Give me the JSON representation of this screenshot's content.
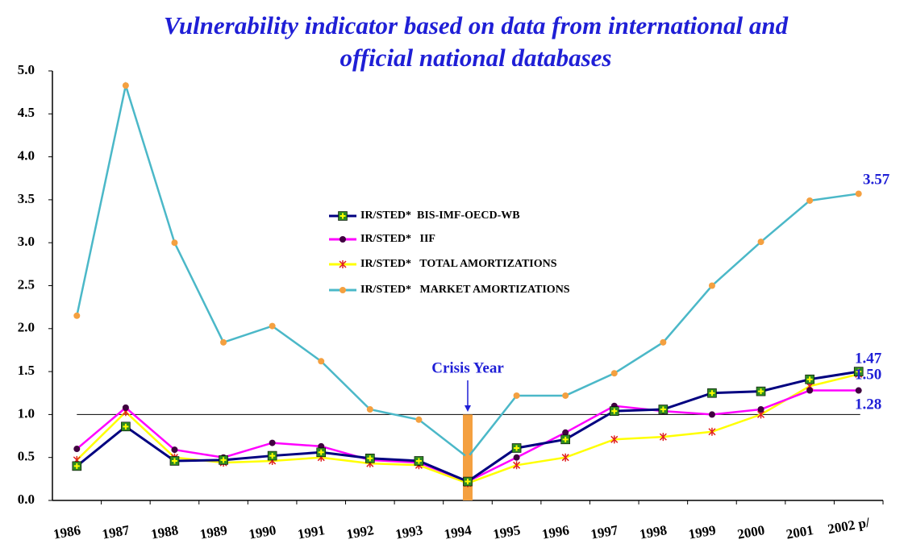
{
  "chart_data": {
    "type": "line",
    "title": [
      "Vulnerability indicator based on data from international and",
      "official national databases"
    ],
    "categories": [
      "1986",
      "1987",
      "1988",
      "1989",
      "1990",
      "1991",
      "1992",
      "1993",
      "1994",
      "1995",
      "1996",
      "1997",
      "1998",
      "1999",
      "2000",
      "2001",
      "2002 p/"
    ],
    "series": [
      {
        "name": "IR/STED*  BIS-IMF-OECD-WB",
        "color": "#000080",
        "marker": "square",
        "marker_color": "#2e8b22",
        "values": [
          0.4,
          0.86,
          0.46,
          0.47,
          0.52,
          0.56,
          0.49,
          0.46,
          0.22,
          0.61,
          0.71,
          1.04,
          1.06,
          1.25,
          1.27,
          1.41,
          1.5
        ]
      },
      {
        "name": "IR/STED*   IIF",
        "color": "#ff00ff",
        "marker": "circle",
        "marker_color": "#400040",
        "values": [
          0.6,
          1.08,
          0.59,
          0.5,
          0.67,
          0.63,
          0.47,
          0.44,
          0.22,
          0.5,
          0.79,
          1.1,
          1.04,
          1.0,
          1.06,
          1.28,
          1.28
        ]
      },
      {
        "name": "IR/STED*   TOTAL AMORTIZATIONS",
        "color": "#ffff00",
        "marker": "cross",
        "marker_color": "#e02020",
        "values": [
          0.47,
          1.03,
          0.5,
          0.44,
          0.46,
          0.5,
          0.43,
          0.41,
          0.2,
          0.41,
          0.5,
          0.71,
          0.74,
          0.8,
          1.0,
          1.33,
          1.47
        ]
      },
      {
        "name": "IR/STED*   MARKET AMORTIZATIONS",
        "color": "#4bb8c8",
        "marker": "circle",
        "marker_color": "#f4a040",
        "values": [
          2.15,
          4.83,
          3.0,
          1.84,
          2.03,
          1.62,
          1.06,
          0.94,
          0.5,
          1.22,
          1.22,
          1.48,
          1.84,
          2.5,
          3.01,
          3.49,
          3.57
        ]
      }
    ],
    "ylim": [
      0,
      5
    ],
    "yticks": [
      {
        "value": 0,
        "label": "0.0"
      },
      0.5,
      {
        "value": 1,
        "label": "1.0"
      },
      1.5,
      {
        "value": 2,
        "label": "2.0"
      },
      2.5,
      {
        "value": 3,
        "label": "3.0"
      },
      3.5,
      {
        "value": 4,
        "label": "4.0"
      },
      4.5,
      {
        "value": 5,
        "label": "5.0"
      }
    ],
    "reference_line": 1,
    "highlight": {
      "category": "1994",
      "value": 1,
      "label": "Crisis Year",
      "color": "#f4a040"
    },
    "annotations": [
      "3.57",
      "1.47",
      "1.50",
      "1.28"
    ]
  }
}
